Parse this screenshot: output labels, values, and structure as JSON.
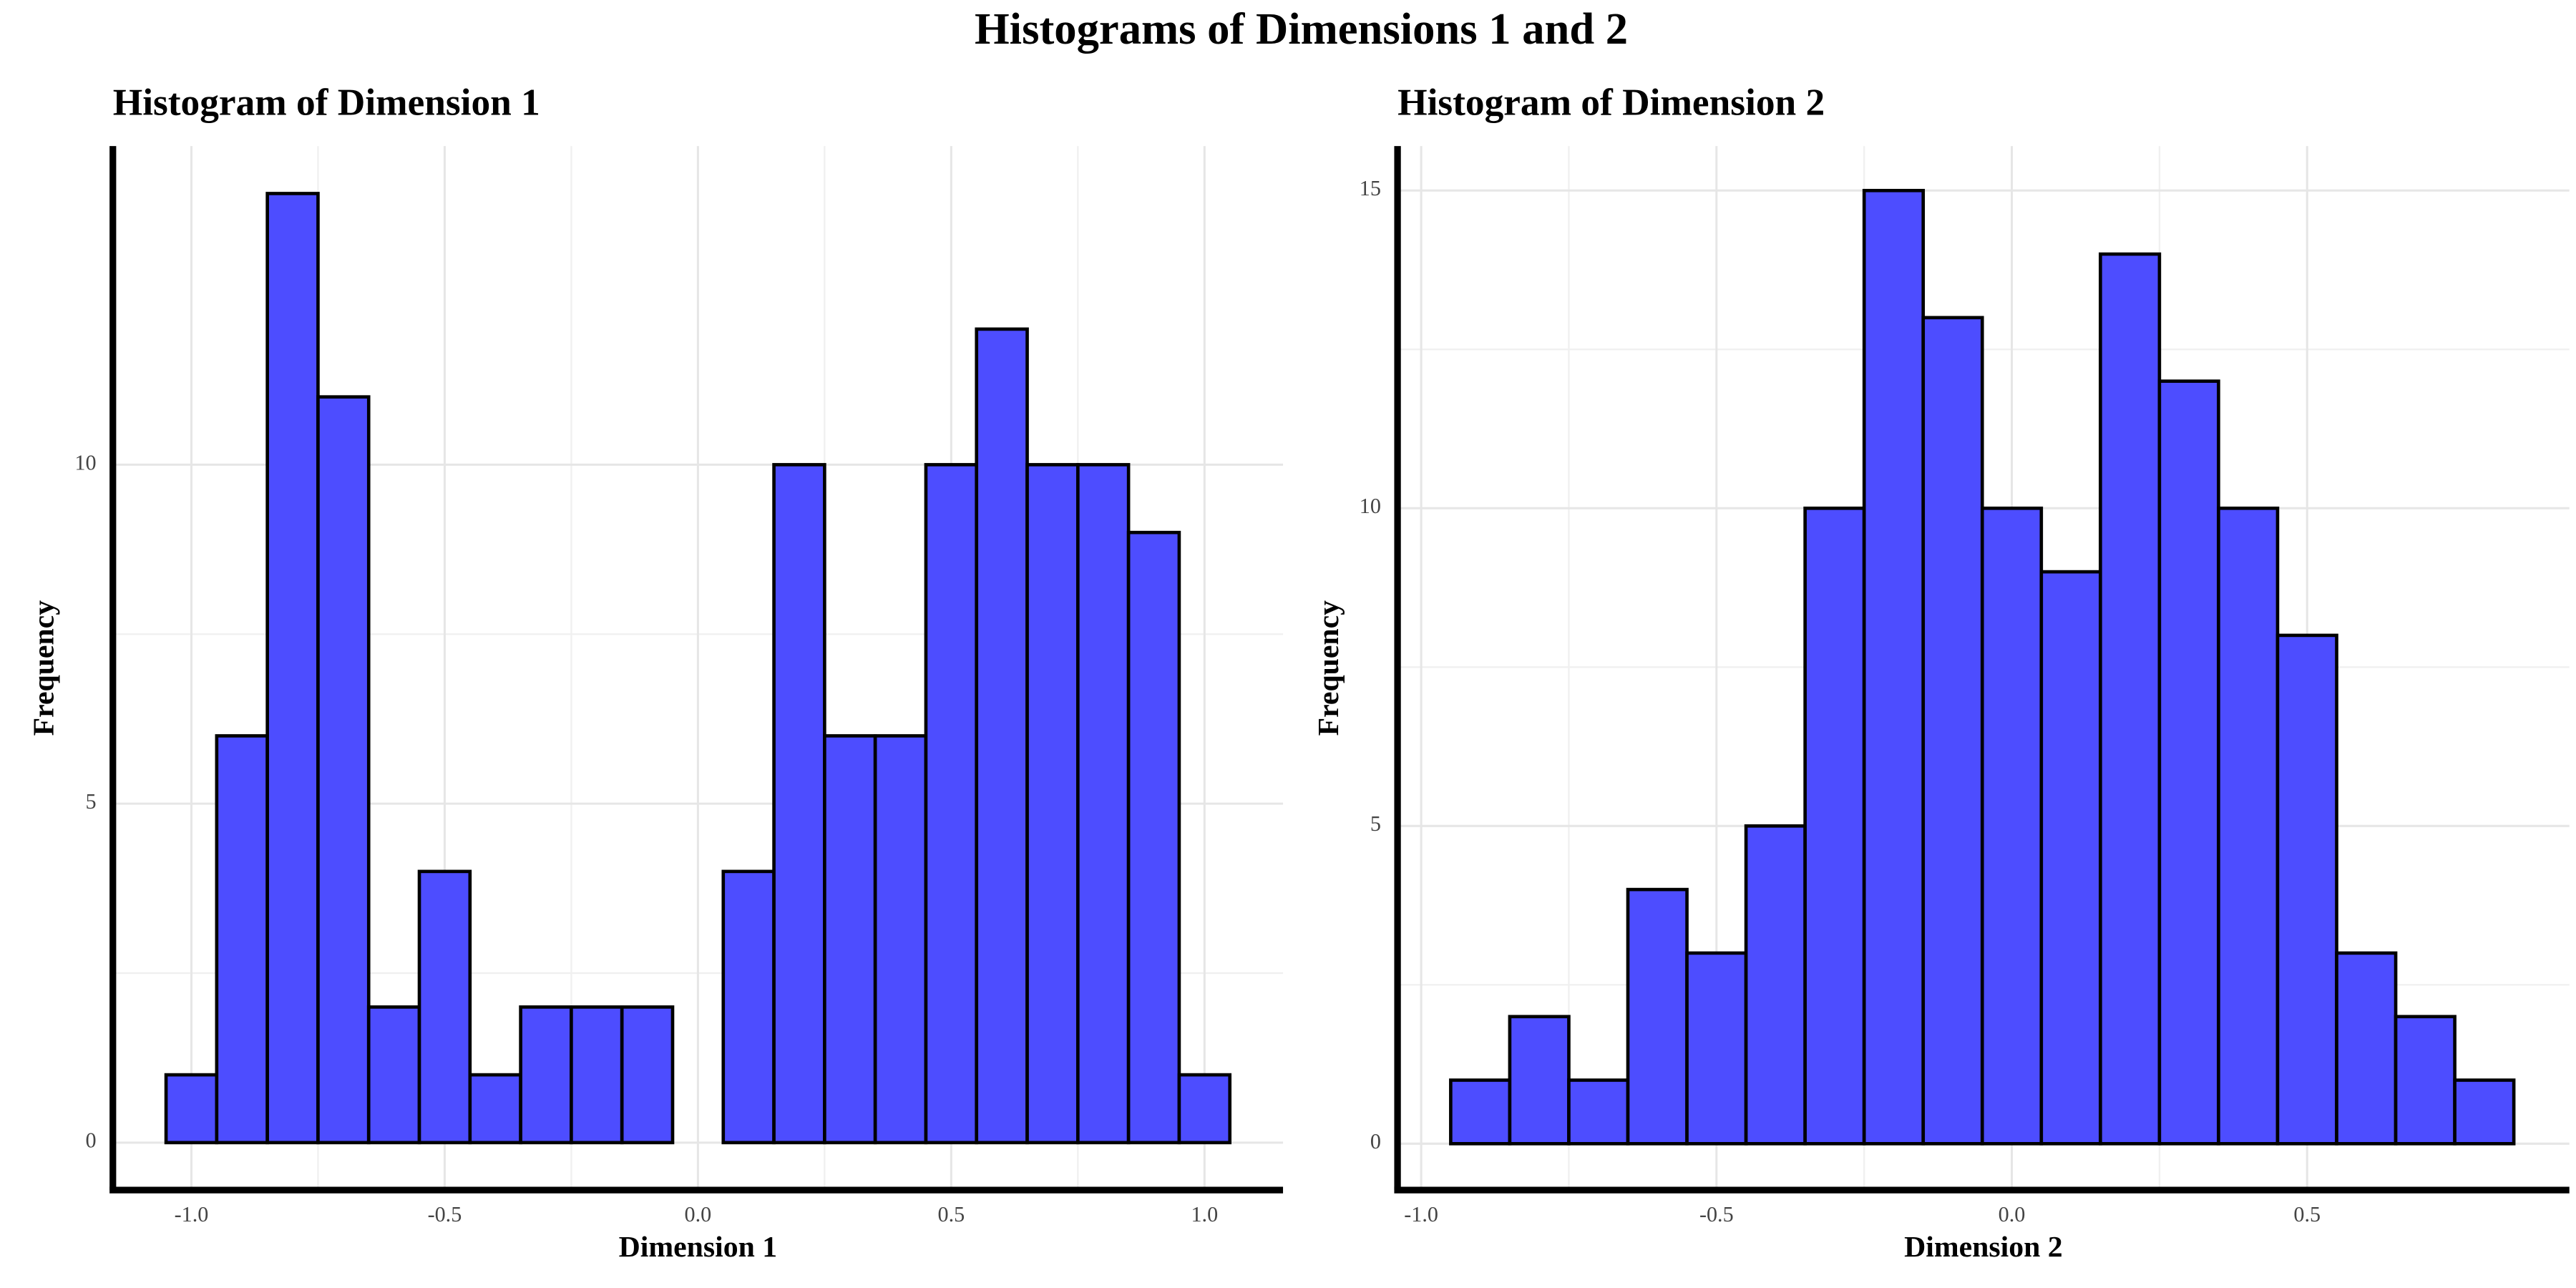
{
  "title": "Histograms of Dimensions 1 and 2",
  "chart_data": [
    {
      "type": "histogram",
      "title": "Histogram of Dimension 1",
      "xlabel": "Dimension 1",
      "ylabel": "Frequency",
      "bins": [
        -1.05,
        -0.95,
        -0.85,
        -0.75,
        -0.65,
        -0.55,
        -0.45,
        -0.35,
        -0.25,
        -0.15,
        -0.05,
        0.05,
        0.15,
        0.25,
        0.35,
        0.45,
        0.55,
        0.65,
        0.75,
        0.85,
        0.95,
        1.05
      ],
      "values": [
        1,
        6,
        14,
        11,
        2,
        4,
        1,
        2,
        2,
        2,
        0,
        4,
        10,
        6,
        6,
        10,
        12,
        10,
        10,
        9,
        1
      ],
      "xlim": [
        -1.155,
        1.155
      ],
      "ylim": [
        -0.7,
        14.7
      ],
      "xticks": [
        {
          "value": -1,
          "label": "-1.0"
        },
        -0.5,
        {
          "value": 0,
          "label": "0.0"
        },
        0.5,
        {
          "value": 1,
          "label": "1.0"
        }
      ],
      "yticks": [
        0,
        5,
        10
      ],
      "color": "#4d4dff",
      "edgecolor": "#000000",
      "grid": true,
      "minor_grid": true
    },
    {
      "type": "histogram",
      "title": "Histogram of Dimension 2",
      "xlabel": "Dimension 2",
      "ylabel": "Frequency",
      "bins": [
        -0.95,
        -0.85,
        -0.75,
        -0.65,
        -0.55,
        -0.45,
        -0.35,
        -0.25,
        -0.15,
        -0.05,
        0.05,
        0.15,
        0.25,
        0.35,
        0.45,
        0.55,
        0.65,
        0.75,
        0.85
      ],
      "values": [
        1,
        2,
        1,
        4,
        3,
        5,
        10,
        15,
        13,
        10,
        9,
        14,
        12,
        10,
        8,
        3,
        2,
        1
      ],
      "xlim": [
        -1.04,
        0.944
      ],
      "ylim": [
        -0.73,
        15.7
      ],
      "xticks": [
        {
          "value": -1,
          "label": "-1.0"
        },
        -0.5,
        {
          "value": 0,
          "label": "0.0"
        },
        0.5
      ],
      "yticks": [
        0,
        5,
        10,
        15
      ],
      "color": "#4d4dff",
      "edgecolor": "#000000",
      "grid": true,
      "minor_grid": true
    }
  ]
}
